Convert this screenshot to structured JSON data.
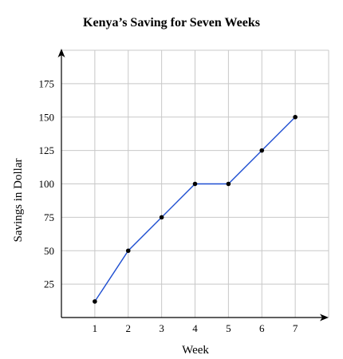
{
  "chart_data": {
    "type": "line",
    "title": "Kenya’s Saving for Seven Weeks",
    "xlabel": "Week",
    "ylabel": "Savings in Dollar",
    "x": [
      1,
      2,
      3,
      4,
      5,
      6,
      7
    ],
    "series": [
      {
        "values": [
          12,
          50,
          75,
          100,
          100,
          125,
          150
        ],
        "color": "#1f4fd1",
        "marker_color": "#000000"
      }
    ],
    "x_ticks": [
      "1",
      "2",
      "3",
      "4",
      "5",
      "6",
      "7"
    ],
    "y_ticks": [
      "25",
      "50",
      "75",
      "100",
      "125",
      "150",
      "175"
    ],
    "xlim": [
      0,
      8
    ],
    "ylim": [
      0,
      200
    ],
    "grid": true,
    "grid_color": "#c8c8c8",
    "axis_color": "#000000"
  }
}
